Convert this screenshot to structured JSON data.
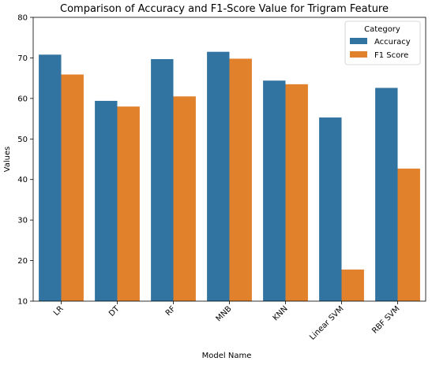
{
  "chart_data": {
    "type": "bar",
    "title": "Comparison of Accuracy and F1-Score Value for Trigram Feature",
    "xlabel": "Model Name",
    "ylabel": "Values",
    "categories": [
      "LR",
      "DT",
      "RF",
      "MNB",
      "KNN",
      "Linear SVM",
      "RBF SVM"
    ],
    "series": [
      {
        "name": "Accuracy",
        "color": "#3274a1",
        "values": [
          70.8,
          59.4,
          69.7,
          71.5,
          64.4,
          55.3,
          62.6
        ]
      },
      {
        "name": "F1 Score",
        "color": "#e1812c",
        "values": [
          65.9,
          58.0,
          60.5,
          69.8,
          63.5,
          17.8,
          42.7
        ]
      }
    ],
    "ylim": [
      10,
      80
    ],
    "yticks": [
      10,
      20,
      30,
      40,
      50,
      60,
      70,
      80
    ],
    "legend": {
      "title": "Category",
      "placement": "upper-right"
    },
    "grid": false
  }
}
